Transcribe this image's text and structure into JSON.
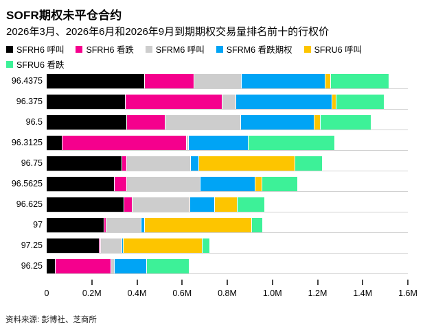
{
  "header": {
    "title": "SOFR期权未平仓合约",
    "subtitle": "2026年3月、2026年6月和2026年9月到期期权交易量排名前十的行权价"
  },
  "footer": {
    "source": "资料来源: 彭博社、芝商所"
  },
  "chart_data": {
    "type": "bar",
    "orientation": "horizontal",
    "stacked": true,
    "grid": false,
    "legend_position": "top",
    "xlim": [
      0,
      1.6
    ],
    "x_ticks": [
      {
        "value": 0.0,
        "label": "0"
      },
      {
        "value": 0.2,
        "label": "0.2M"
      },
      {
        "value": 0.4,
        "label": "0.4M"
      },
      {
        "value": 0.6,
        "label": "0.6M"
      },
      {
        "value": 0.8,
        "label": "0.8M"
      },
      {
        "value": 1.0,
        "label": "1.0M"
      },
      {
        "value": 1.2,
        "label": "1.2M"
      },
      {
        "value": 1.4,
        "label": "1.4M"
      },
      {
        "value": 1.6,
        "label": "1.6M"
      }
    ],
    "categories": [
      "96.4375",
      "96.375",
      "96.5",
      "96.3125",
      "96.75",
      "96.5625",
      "96.625",
      "97",
      "97.25",
      "96.25"
    ],
    "series": [
      {
        "name": "SFRH6 呼叫",
        "color": "#000000",
        "values": [
          0.435,
          0.35,
          0.355,
          0.07,
          0.335,
          0.3,
          0.345,
          0.255,
          0.235,
          0.04
        ]
      },
      {
        "name": "SFRH6 看跌",
        "color": "#F5008D",
        "values": [
          0.22,
          0.43,
          0.17,
          0.55,
          0.02,
          0.055,
          0.035,
          0.01,
          0.005,
          0.245
        ]
      },
      {
        "name": "SFRM6 呼叫",
        "color": "#CDCDCD",
        "values": [
          0.21,
          0.06,
          0.335,
          0.01,
          0.285,
          0.325,
          0.255,
          0.155,
          0.095,
          0.015
        ]
      },
      {
        "name": "SFRM6 看跌期权",
        "color": "#00A4F5",
        "values": [
          0.37,
          0.425,
          0.325,
          0.265,
          0.035,
          0.245,
          0.11,
          0.015,
          0.005,
          0.145
        ]
      },
      {
        "name": "SFRU6 呼叫",
        "color": "#FDC500",
        "values": [
          0.025,
          0.02,
          0.03,
          0.0,
          0.425,
          0.03,
          0.1,
          0.475,
          0.35,
          0.0
        ]
      },
      {
        "name": "SFRU6 看跌",
        "color": "#3DF198",
        "values": [
          0.255,
          0.21,
          0.22,
          0.38,
          0.12,
          0.155,
          0.12,
          0.045,
          0.03,
          0.185
        ]
      }
    ]
  }
}
